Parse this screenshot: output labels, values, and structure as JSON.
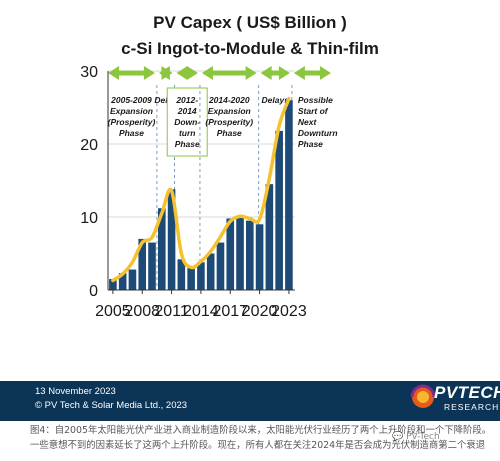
{
  "chart_data": {
    "type": "bar",
    "title": "PV Capex ( US$ Billion )",
    "subtitle": "c-Si Ingot-to-Module & Thin-film",
    "ylim": [
      0,
      30
    ],
    "yticks": [
      "0",
      "10",
      "20",
      "30"
    ],
    "xticks": [
      "2005",
      "2008",
      "2011",
      "2014",
      "2017",
      "2020",
      "2023"
    ],
    "categories": [
      "2005",
      "2006",
      "2007",
      "2008",
      "2009",
      "2010",
      "2011",
      "2012",
      "2013",
      "2014",
      "2015",
      "2016",
      "2017",
      "2018",
      "2019",
      "2020",
      "2021",
      "2022",
      "2023"
    ],
    "values": [
      1.5,
      2.3,
      2.8,
      7.0,
      6.5,
      11.2,
      13.8,
      4.2,
      3.0,
      3.8,
      5.0,
      6.5,
      9.8,
      10.0,
      9.5,
      9.0,
      14.5,
      21.8,
      26.0
    ],
    "trend": [
      1.3,
      2.2,
      3.8,
      6.5,
      7.2,
      10.5,
      13.6,
      5.0,
      3.1,
      3.9,
      5.3,
      7.3,
      9.4,
      10.1,
      9.8,
      9.7,
      15.3,
      22.5,
      26.2
    ],
    "grid": true,
    "colors": {
      "bar": "#1e4a78",
      "trend": "#f4c230",
      "arrow": "#8cc63f"
    },
    "phases": [
      {
        "label": "2005-2009\nExpansion\n(Prosperity)\nPhase",
        "from": 2004.8,
        "to": 2010.0
      },
      {
        "label": "Delay",
        "from": 2010.0,
        "to": 2011.8
      },
      {
        "label": "2012-\n2014\nDown-\nturn\nPhase",
        "from": 2011.8,
        "to": 2014.4,
        "boxed": true
      },
      {
        "label": "2014-2020\nExpansion\n(Prosperity)\nPhase",
        "from": 2014.4,
        "to": 2020.4
      },
      {
        "label": "Delays",
        "from": 2020.4,
        "to": 2023.8
      },
      {
        "label": "Possible\nStart of\nNext\nDownturn\nPhase",
        "from": 2023.8,
        "to": 2028.0,
        "open": true
      }
    ]
  },
  "footer": {
    "date": "13 November 2023",
    "copyright": "© PV Tech & Solar Media Ltd., 2023",
    "logo": "PVTECH",
    "logo_sub": "RESEARCH"
  },
  "caption": "图4：自2005年太阳能光伏产业进入商业制造阶段以来，太阳能光伏行业经历了两个上升阶段和一个下降阶段。一些意想不到的因素延长了这两个上升阶段。现在，所有人都在关注2024年是否会成为光伏制造商第二个衰退",
  "watermark": "PV-Tech"
}
